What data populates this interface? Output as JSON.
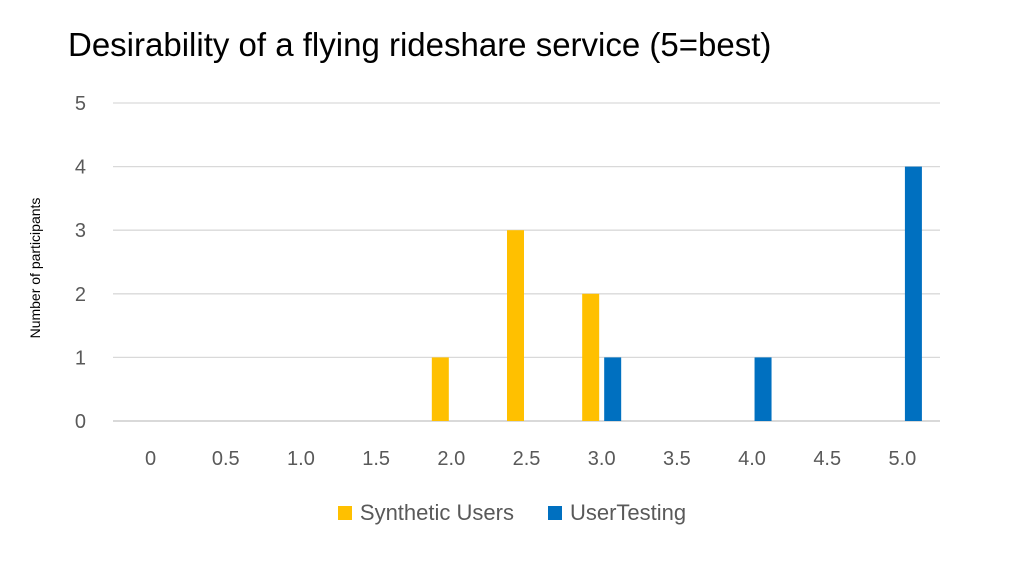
{
  "chart_data": {
    "type": "bar",
    "title": "Desirability of a flying rideshare service (5=best)",
    "xlabel": "",
    "ylabel": "Number of participants",
    "categories": [
      "0",
      "0.5",
      "1.0",
      "1.5",
      "2.0",
      "2.5",
      "3.0",
      "3.5",
      "4.0",
      "4.5",
      "5.0"
    ],
    "series": [
      {
        "name": "Synthetic Users",
        "color": "#FFC000",
        "values": [
          0,
          0,
          0,
          0,
          1,
          3,
          2,
          0,
          0,
          0,
          0
        ]
      },
      {
        "name": "UserTesting",
        "color": "#0070C0",
        "values": [
          0,
          0,
          0,
          0,
          0,
          0,
          1,
          0,
          1,
          0,
          4
        ]
      }
    ],
    "ylim": [
      0,
      5
    ],
    "yticks": [
      "0",
      "1",
      "2",
      "3",
      "4",
      "5"
    ],
    "grid": true,
    "legend": "bottom"
  }
}
